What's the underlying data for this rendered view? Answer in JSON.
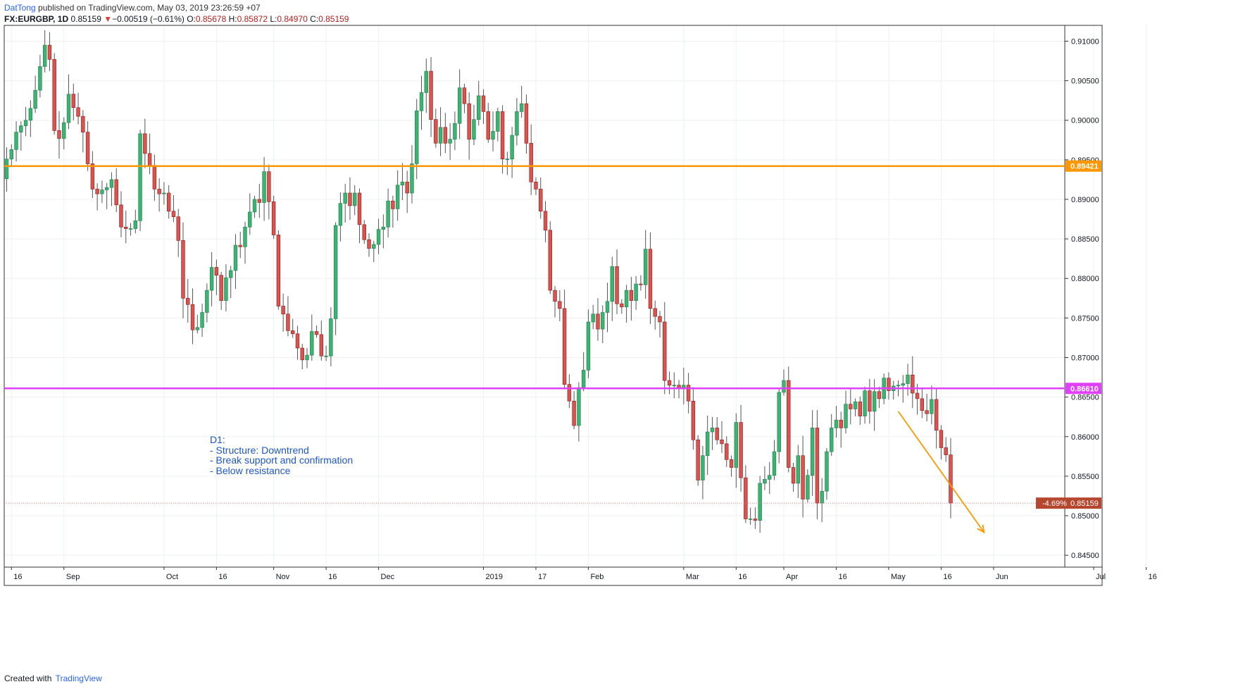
{
  "header": {
    "author": "DatTong",
    "published_text": "published on TradingView.com, May 03, 2019 23:26:59 +07",
    "symbol": "FX:EURGBP, 1D",
    "last": "0.85159",
    "change_arrow": "▼",
    "change": "−0.00519 (−0.61%)",
    "o_label": "O:",
    "o_value": "0.85678",
    "h_label": "H:",
    "h_value": "0.85872",
    "l_label": "L:",
    "l_value": "0.84970",
    "c_label": "C:",
    "c_value": "0.85159"
  },
  "footer": {
    "created_with": "Created with",
    "brand": "TradingView"
  },
  "annotation": {
    "text": "D1:\n- Structure: Downtrend\n- Break support and confirmation\n- Below resistance"
  },
  "chart_data": {
    "type": "candlestick",
    "title": "FX:EURGBP, 1D",
    "ylim": [
      0.8435,
      0.912
    ],
    "yticks": [
      0.91,
      0.905,
      0.9,
      0.895,
      0.89,
      0.885,
      0.88,
      0.875,
      0.87,
      0.865,
      0.86,
      0.855,
      0.85,
      0.845
    ],
    "ytick_labels": [
      "0.91000",
      "0.90500",
      "0.90000",
      "0.89500",
      "0.89000",
      "0.88500",
      "0.88000",
      "0.87500",
      "0.87000",
      "0.86500",
      "0.86000",
      "0.85500",
      "0.85000",
      "0.84500"
    ],
    "x_tick_labels": [
      {
        "label": "16",
        "bar": 1
      },
      {
        "label": "Sep",
        "bar": 12
      },
      {
        "label": "Oct",
        "bar": 33
      },
      {
        "label": "16",
        "bar": 44
      },
      {
        "label": "Nov",
        "bar": 56
      },
      {
        "label": "16",
        "bar": 67
      },
      {
        "label": "Dec",
        "bar": 78
      },
      {
        "label": "2019",
        "bar": 100
      },
      {
        "label": "17",
        "bar": 111
      },
      {
        "label": "Feb",
        "bar": 122
      },
      {
        "label": "Mar",
        "bar": 142
      },
      {
        "label": "16",
        "bar": 153
      },
      {
        "label": "Apr",
        "bar": 163
      },
      {
        "label": "16",
        "bar": 174
      },
      {
        "label": "May",
        "bar": 185
      },
      {
        "label": "16",
        "bar": 196
      },
      {
        "label": "Jun",
        "bar": 207
      },
      {
        "label": "Jul",
        "bar": 228
      },
      {
        "label": "16",
        "bar": 239
      }
    ],
    "grid": true,
    "colors": {
      "up": "#26a69a",
      "up_fill": "#3cb371",
      "down": "#b22222",
      "down_fill": "#d9534f",
      "wick": "#555555"
    },
    "closes": [
      0.8951,
      0.8963,
      0.8985,
      0.8993,
      0.9,
      0.9015,
      0.9038,
      0.9068,
      0.9095,
      0.9077,
      0.8987,
      0.8977,
      0.8997,
      0.9033,
      0.9016,
      0.9005,
      0.8985,
      0.8945,
      0.8913,
      0.8907,
      0.8912,
      0.8915,
      0.8925,
      0.8893,
      0.8865,
      0.8863,
      0.8863,
      0.8873,
      0.8983,
      0.8958,
      0.8943,
      0.8913,
      0.8907,
      0.8908,
      0.8885,
      0.8878,
      0.8848,
      0.8775,
      0.8767,
      0.8735,
      0.8738,
      0.8757,
      0.8785,
      0.8814,
      0.8804,
      0.8772,
      0.8801,
      0.881,
      0.8842,
      0.884,
      0.8865,
      0.8884,
      0.89,
      0.8896,
      0.8935,
      0.8897,
      0.8855,
      0.8765,
      0.8755,
      0.8734,
      0.873,
      0.8712,
      0.8697,
      0.8703,
      0.8733,
      0.8729,
      0.8702,
      0.8702,
      0.8749,
      0.8867,
      0.8895,
      0.8908,
      0.8892,
      0.8908,
      0.8868,
      0.8849,
      0.8838,
      0.8843,
      0.8862,
      0.8865,
      0.8898,
      0.8888,
      0.8918,
      0.8922,
      0.8908,
      0.8945,
      0.9012,
      0.9035,
      0.9062,
      0.9001,
      0.8971,
      0.8991,
      0.8971,
      0.8976,
      0.8996,
      0.9041,
      0.9021,
      0.8976,
      0.9001,
      0.9031,
      0.9011,
      0.8976,
      0.8986,
      0.9011,
      0.8951,
      0.8951,
      0.8981,
      0.9011,
      0.9021,
      0.8971,
      0.8922,
      0.8913,
      0.8885,
      0.8861,
      0.8785,
      0.8771,
      0.8762,
      0.8666,
      0.8645,
      0.8614,
      0.8662,
      0.8684,
      0.8745,
      0.8755,
      0.8736,
      0.8757,
      0.8771,
      0.8815,
      0.8768,
      0.8764,
      0.8785,
      0.8772,
      0.8793,
      0.8792,
      0.8837,
      0.8762,
      0.8752,
      0.8745,
      0.8671,
      0.8665,
      0.8665,
      0.8661,
      0.8665,
      0.8645,
      0.8596,
      0.8545,
      0.8576,
      0.8606,
      0.8611,
      0.8596,
      0.8591,
      0.8571,
      0.8561,
      0.8618,
      0.8548,
      0.8496,
      0.8496,
      0.8494,
      0.8541,
      0.8546,
      0.8551,
      0.8581,
      0.8656,
      0.8671,
      0.8561,
      0.8541,
      0.8576,
      0.8521,
      0.8551,
      0.8611,
      0.8516,
      0.8531,
      0.8581,
      0.8611,
      0.8621,
      0.8611,
      0.8641,
      0.8635,
      0.8644,
      0.8626,
      0.8658,
      0.8632,
      0.8657,
      0.8648,
      0.8674,
      0.8658,
      0.8664,
      0.8665,
      0.8667,
      0.8678,
      0.8655,
      0.8648,
      0.8633,
      0.8629,
      0.8647,
      0.8608,
      0.8586,
      0.8577,
      0.8516
    ],
    "last_price": 0.85159,
    "last_price_label": "0.85159",
    "change_pct_label": "-4.69%",
    "levels": [
      {
        "name": "resistance",
        "price": 0.89421,
        "label": "0.89421",
        "color": "#ff9800"
      },
      {
        "name": "support",
        "price": 0.8661,
        "label": "0.86610",
        "color": "#e040fb"
      }
    ],
    "projection": {
      "from_bar": 187,
      "from_price": 0.8632,
      "to_bar": 205,
      "to_price": 0.8479,
      "color": "#ff9800"
    }
  }
}
